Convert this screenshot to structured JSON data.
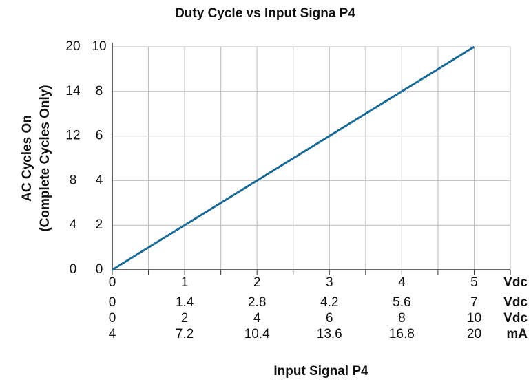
{
  "chart_data": {
    "type": "line",
    "title": "Duty Cycle vs Input Signa P4",
    "ylabel": [
      "AC Cycles On",
      "(Complete Cycles Only)"
    ],
    "xlabel": "Input Signal P4",
    "x": [
      0,
      5
    ],
    "series": [
      {
        "color": "#1a6a96",
        "values": [
          0,
          10
        ]
      }
    ],
    "ylim": [
      0,
      10
    ],
    "yticks": [
      0,
      2,
      4,
      6,
      8,
      10
    ],
    "y2ticks": [
      0,
      4,
      8,
      12,
      14,
      20
    ],
    "xlim": [
      0,
      5.5
    ],
    "xgrid": [
      0.5,
      1.5,
      2.5,
      3.5,
      4.5,
      5.5
    ],
    "x_axes": [
      {
        "unit": "Vdc",
        "xlim": [
          0,
          5.5
        ],
        "xticks": [
          0,
          1,
          2,
          3,
          4,
          5
        ]
      },
      {
        "unit": "Vdc",
        "xlim": [
          0,
          7.7
        ],
        "xticks": [
          0,
          1.4,
          2.8,
          4.2,
          5.6,
          7
        ]
      },
      {
        "unit": "Vdc",
        "xlim": [
          0,
          11
        ],
        "xticks": [
          0,
          2,
          4,
          6,
          8,
          10
        ]
      },
      {
        "unit": "mA",
        "xlim": [
          4,
          21.6
        ],
        "xticks": [
          4,
          7.2,
          10.4,
          13.6,
          16.8,
          20
        ]
      }
    ],
    "grid": true
  }
}
